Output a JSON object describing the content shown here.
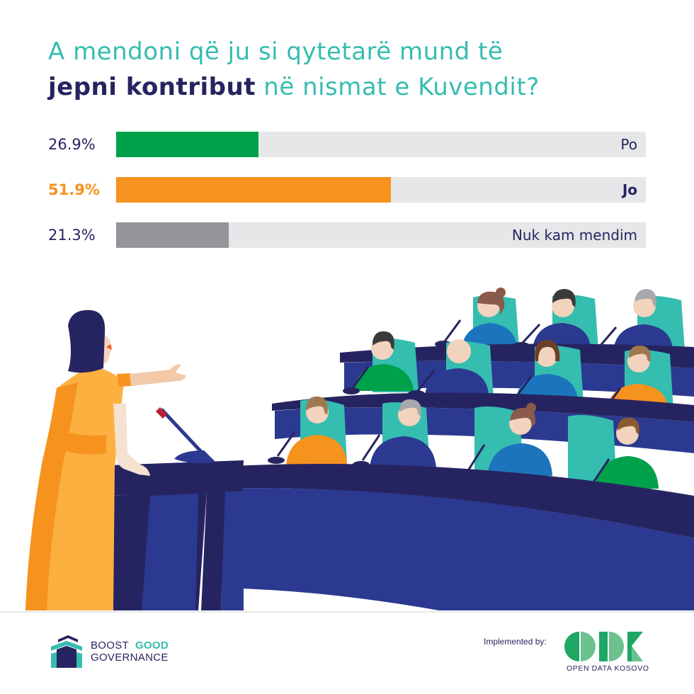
{
  "title": {
    "line1": "A mendoni që ju si qytetarë mund të",
    "line2_bold": "jepni kontribut",
    "line2_rest": " në nismat e Kuvendit?"
  },
  "chart_data": {
    "type": "bar",
    "orientation": "horizontal",
    "title": "A mendoni që ju si qytetarë mund të jepni kontribut në nismat e Kuvendit?",
    "categories": [
      "Po",
      "Jo",
      "Nuk kam mendim"
    ],
    "values": [
      26.9,
      51.9,
      21.3
    ],
    "value_labels": [
      "26.9%",
      "51.9%",
      "21.3%"
    ],
    "colors": [
      "#00a14b",
      "#f6921e",
      "#939598"
    ],
    "highlighted": "Jo",
    "xlim": [
      0,
      100
    ],
    "unit": "%",
    "grid": false,
    "legend": "none"
  },
  "bars": [
    {
      "pct": "26.9%",
      "label": "Po",
      "value": 26.9,
      "color": "#00a14b"
    },
    {
      "pct": "51.9%",
      "label": "Jo",
      "value": 51.9,
      "color": "#f6921e"
    },
    {
      "pct": "21.3%",
      "label": "Nuk kam mendim",
      "value": 21.3,
      "color": "#939598"
    }
  ],
  "colors": {
    "teal": "#35bdb0",
    "navy": "#262460",
    "track": "#e6e7e8",
    "desk_blue": "#2b3990",
    "desk_dark": "#262460",
    "seat_teal": "#35bdb0",
    "dress_orange": "#fbb040"
  },
  "footer": {
    "logo_left": {
      "word1": "BOOST",
      "word2": "GOOD",
      "word3": "GOVERNANCE"
    },
    "implemented_by": "Implemented by:",
    "logo_right": {
      "mark": "ODK",
      "subtitle": "OPEN DATA KOSOVO"
    }
  }
}
